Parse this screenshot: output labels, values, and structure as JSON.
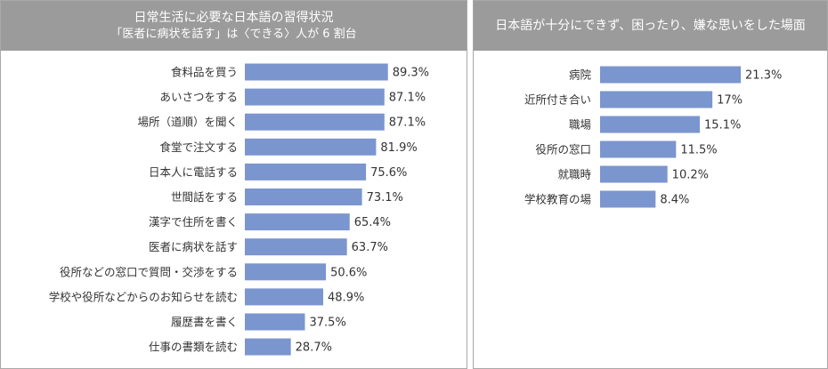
{
  "bar_color": "#7b95cf",
  "chart_data": [
    {
      "type": "bar",
      "orientation": "horizontal",
      "title": "日常生活に必要な日本語の習得状況",
      "subtitle": "「医者に病状を話す」は〈できる〉人が 6 割台",
      "categories": [
        "食料品を買う",
        "あいさつをする",
        "場所（道順）を聞く",
        "食堂で注文する",
        "日本人に電話する",
        "世間話をする",
        "漢字で住所を書く",
        "医者に病状を話す",
        "役所などの窓口で質問・交渉をする",
        "学校や役所などからのお知らせを読む",
        "履歴書を書く",
        "仕事の書類を読む"
      ],
      "values": [
        89.3,
        87.1,
        87.1,
        81.9,
        75.6,
        73.1,
        65.4,
        63.7,
        50.6,
        48.9,
        37.5,
        28.7
      ],
      "value_labels": [
        "89.3%",
        "87.1%",
        "87.1%",
        "81.9%",
        "75.6%",
        "73.1%",
        "65.4%",
        "63.7%",
        "50.6%",
        "48.9%",
        "37.5%",
        "28.7%"
      ],
      "xlim": [
        0,
        100
      ],
      "grid": false
    },
    {
      "type": "bar",
      "orientation": "horizontal",
      "title": "日本語が十分にできず、困ったり、嫌な思いをした場面",
      "categories": [
        "病院",
        "近所付き合い",
        "職場",
        "役所の窓口",
        "就職時",
        "学校教育の場"
      ],
      "values": [
        21.3,
        17,
        15.1,
        11.5,
        10.2,
        8.4
      ],
      "value_labels": [
        "21.3%",
        "17%",
        "15.1%",
        "11.5%",
        "10.2%",
        "8.4%"
      ],
      "xlim": [
        0,
        25
      ],
      "grid": false
    }
  ]
}
